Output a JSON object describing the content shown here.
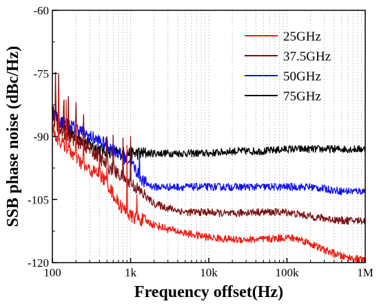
{
  "chart_data": {
    "type": "line",
    "title": "",
    "xlabel": "Frequency offset(Hz)",
    "ylabel": "SSB phase noise (dBc/Hz)",
    "x_scale": "log",
    "xlim": [
      100,
      1000000
    ],
    "ylim": [
      -120,
      -60
    ],
    "x_ticks": [
      100,
      1000,
      10000,
      100000,
      1000000
    ],
    "x_tick_labels": [
      "100",
      "1k",
      "10k",
      "100k",
      "1M"
    ],
    "y_ticks": [
      -60,
      -75,
      -90,
      -105,
      -120
    ],
    "y_tick_labels": [
      "-60",
      "-75",
      "-90",
      "-105",
      "-120"
    ],
    "grid": "dotted vertical lines at each x tick",
    "legend_position": "top-right",
    "series": [
      {
        "name": "25GHz",
        "color": "#ee1c12",
        "x": [
          100,
          110,
          120,
          140,
          160,
          200,
          250,
          300,
          400,
          500,
          700,
          1000,
          1500,
          2000,
          3000,
          5000,
          10000,
          20000,
          50000,
          100000,
          150000,
          200000,
          300000,
          500000,
          1000000
        ],
        "y": [
          -87,
          -90,
          -91,
          -92,
          -93,
          -95,
          -97,
          -98,
          -99,
          -101,
          -106,
          -109,
          -110,
          -111,
          -112,
          -113,
          -114,
          -114.5,
          -114.5,
          -114,
          -114.5,
          -115.5,
          -117,
          -118.5,
          -119.5
        ],
        "spikes": [
          {
            "x": 120,
            "y": -77
          },
          {
            "x": 150,
            "y": -79
          },
          {
            "x": 200,
            "y": -83
          },
          {
            "x": 250,
            "y": -86
          },
          {
            "x": 400,
            "y": -93
          },
          {
            "x": 500,
            "y": -96
          },
          {
            "x": 900,
            "y": -92
          },
          {
            "x": 1200,
            "y": -103
          }
        ]
      },
      {
        "name": "37.5GHz",
        "color": "#7a1010",
        "x": [
          100,
          110,
          120,
          140,
          160,
          200,
          250,
          300,
          400,
          500,
          700,
          1000,
          1500,
          2000,
          3000,
          5000,
          10000,
          20000,
          30000,
          50000,
          100000,
          200000,
          300000,
          500000,
          1000000
        ],
        "y": [
          -85,
          -87,
          -88,
          -89,
          -90,
          -91,
          -92,
          -93,
          -95,
          -97,
          -99,
          -101,
          -104,
          -106,
          -107,
          -108,
          -108,
          -108.5,
          -108,
          -108,
          -108,
          -109,
          -109.5,
          -110,
          -110
        ],
        "spikes": [
          {
            "x": 110,
            "y": -71
          },
          {
            "x": 120,
            "y": -73
          },
          {
            "x": 140,
            "y": -76
          },
          {
            "x": 160,
            "y": -77
          },
          {
            "x": 200,
            "y": -78
          },
          {
            "x": 250,
            "y": -81
          },
          {
            "x": 500,
            "y": -87
          },
          {
            "x": 600,
            "y": -88
          },
          {
            "x": 800,
            "y": -90
          },
          {
            "x": 1000,
            "y": -90
          }
        ]
      },
      {
        "name": "50GHz",
        "color": "#1010f0",
        "x": [
          100,
          120,
          150,
          200,
          300,
          500,
          700,
          1000,
          1500,
          2000,
          3000,
          5000,
          10000,
          20000,
          50000,
          100000,
          200000,
          500000,
          1000000
        ],
        "y": [
          -84,
          -86,
          -87,
          -88,
          -90,
          -92,
          -94,
          -96,
          -101,
          -102,
          -102,
          -102,
          -102,
          -102,
          -102,
          -102,
          -102,
          -103,
          -103
        ],
        "spikes": [
          {
            "x": 1300,
            "y": -94
          }
        ]
      },
      {
        "name": "75GHz",
        "color": "#000000",
        "x": [
          100,
          120,
          150,
          200,
          250,
          300,
          400,
          500,
          700,
          1000,
          2000,
          5000,
          10000,
          20000,
          50000,
          100000,
          200000,
          500000,
          1000000
        ],
        "y": [
          -84,
          -86,
          -88,
          -90,
          -91,
          -92,
          -93,
          -93.5,
          -94,
          -94,
          -94,
          -94,
          -94,
          -93.5,
          -93.5,
          -93,
          -93,
          -93,
          -93
        ],
        "spikes": []
      }
    ]
  }
}
